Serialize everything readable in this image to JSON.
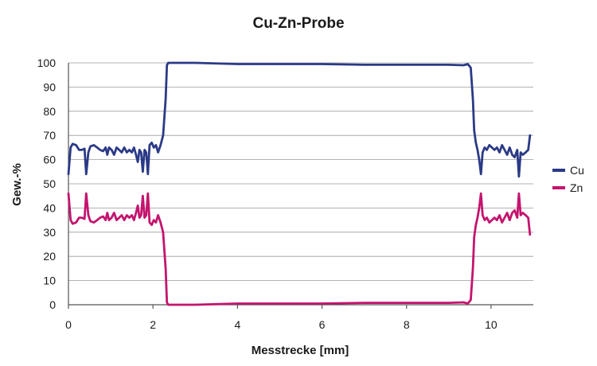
{
  "chart_data": {
    "type": "line",
    "title": "Cu-Zn-Probe",
    "xlabel": "Messtrecke [mm]",
    "ylabel": "Gew.-%",
    "xlim": [
      0,
      11
    ],
    "ylim": [
      0,
      100
    ],
    "xticks": [
      0,
      2,
      4,
      6,
      8,
      10
    ],
    "yticks": [
      0,
      10,
      20,
      30,
      40,
      50,
      60,
      70,
      80,
      90,
      100
    ],
    "grid": "horizontal",
    "legend": "right",
    "series": [
      {
        "name": "Cu",
        "color": "#2b3a86",
        "points": [
          [
            0.0,
            54
          ],
          [
            0.05,
            65
          ],
          [
            0.1,
            66.5
          ],
          [
            0.18,
            66
          ],
          [
            0.25,
            64
          ],
          [
            0.32,
            64
          ],
          [
            0.38,
            64.5
          ],
          [
            0.42,
            54
          ],
          [
            0.47,
            63
          ],
          [
            0.52,
            65.5
          ],
          [
            0.6,
            66
          ],
          [
            0.68,
            65
          ],
          [
            0.75,
            64
          ],
          [
            0.82,
            63.5
          ],
          [
            0.88,
            65
          ],
          [
            0.92,
            62
          ],
          [
            0.96,
            65
          ],
          [
            1.02,
            64
          ],
          [
            1.08,
            62
          ],
          [
            1.14,
            65
          ],
          [
            1.2,
            64
          ],
          [
            1.26,
            63
          ],
          [
            1.32,
            65
          ],
          [
            1.38,
            63
          ],
          [
            1.44,
            64
          ],
          [
            1.5,
            63
          ],
          [
            1.55,
            65
          ],
          [
            1.6,
            62
          ],
          [
            1.64,
            59
          ],
          [
            1.68,
            64
          ],
          [
            1.72,
            63
          ],
          [
            1.76,
            55
          ],
          [
            1.8,
            64
          ],
          [
            1.84,
            63
          ],
          [
            1.88,
            54
          ],
          [
            1.92,
            66
          ],
          [
            1.97,
            67
          ],
          [
            2.02,
            65
          ],
          [
            2.07,
            66
          ],
          [
            2.12,
            63
          ],
          [
            2.18,
            66
          ],
          [
            2.24,
            70
          ],
          [
            2.3,
            85
          ],
          [
            2.33,
            99
          ],
          [
            2.36,
            100
          ],
          [
            3.0,
            100
          ],
          [
            4.0,
            99.5
          ],
          [
            5.0,
            99.5
          ],
          [
            6.0,
            99.5
          ],
          [
            7.0,
            99.2
          ],
          [
            8.0,
            99.2
          ],
          [
            9.0,
            99.2
          ],
          [
            9.35,
            99
          ],
          [
            9.45,
            99.5
          ],
          [
            9.52,
            98
          ],
          [
            9.57,
            85
          ],
          [
            9.6,
            72
          ],
          [
            9.64,
            67
          ],
          [
            9.68,
            64
          ],
          [
            9.72,
            60
          ],
          [
            9.76,
            54
          ],
          [
            9.8,
            63
          ],
          [
            9.85,
            65
          ],
          [
            9.9,
            64
          ],
          [
            9.96,
            66
          ],
          [
            10.02,
            65
          ],
          [
            10.08,
            64
          ],
          [
            10.14,
            65
          ],
          [
            10.2,
            63
          ],
          [
            10.26,
            66
          ],
          [
            10.32,
            64
          ],
          [
            10.38,
            62
          ],
          [
            10.44,
            65
          ],
          [
            10.5,
            62
          ],
          [
            10.56,
            61
          ],
          [
            10.62,
            64
          ],
          [
            10.66,
            53
          ],
          [
            10.7,
            63
          ],
          [
            10.75,
            62
          ],
          [
            10.82,
            63
          ],
          [
            10.88,
            64
          ],
          [
            10.92,
            70
          ]
        ]
      },
      {
        "name": "Zn",
        "color": "#c4146e",
        "points": [
          [
            0.0,
            46
          ],
          [
            0.05,
            35
          ],
          [
            0.1,
            33.5
          ],
          [
            0.18,
            34
          ],
          [
            0.25,
            36
          ],
          [
            0.32,
            36
          ],
          [
            0.38,
            35.5
          ],
          [
            0.42,
            46
          ],
          [
            0.47,
            37
          ],
          [
            0.52,
            34.5
          ],
          [
            0.6,
            34
          ],
          [
            0.68,
            35
          ],
          [
            0.75,
            36
          ],
          [
            0.82,
            36.5
          ],
          [
            0.88,
            35
          ],
          [
            0.92,
            38
          ],
          [
            0.96,
            35
          ],
          [
            1.02,
            36
          ],
          [
            1.08,
            38
          ],
          [
            1.14,
            35
          ],
          [
            1.2,
            36
          ],
          [
            1.26,
            37
          ],
          [
            1.32,
            35
          ],
          [
            1.38,
            37
          ],
          [
            1.44,
            36
          ],
          [
            1.5,
            37
          ],
          [
            1.55,
            35
          ],
          [
            1.6,
            38
          ],
          [
            1.64,
            41
          ],
          [
            1.68,
            36
          ],
          [
            1.72,
            37
          ],
          [
            1.76,
            45
          ],
          [
            1.8,
            36
          ],
          [
            1.84,
            37
          ],
          [
            1.88,
            46
          ],
          [
            1.92,
            34
          ],
          [
            1.97,
            33
          ],
          [
            2.02,
            35
          ],
          [
            2.07,
            34
          ],
          [
            2.12,
            37
          ],
          [
            2.18,
            34
          ],
          [
            2.24,
            30
          ],
          [
            2.3,
            15
          ],
          [
            2.33,
            1
          ],
          [
            2.36,
            0
          ],
          [
            3.0,
            0
          ],
          [
            4.0,
            0.5
          ],
          [
            5.0,
            0.5
          ],
          [
            6.0,
            0.5
          ],
          [
            7.0,
            0.8
          ],
          [
            8.0,
            0.8
          ],
          [
            9.0,
            0.8
          ],
          [
            9.35,
            1
          ],
          [
            9.45,
            0.5
          ],
          [
            9.52,
            2
          ],
          [
            9.57,
            15
          ],
          [
            9.6,
            28
          ],
          [
            9.64,
            33
          ],
          [
            9.68,
            36
          ],
          [
            9.72,
            40
          ],
          [
            9.76,
            46
          ],
          [
            9.8,
            37
          ],
          [
            9.85,
            35
          ],
          [
            9.9,
            36
          ],
          [
            9.96,
            34
          ],
          [
            10.02,
            35
          ],
          [
            10.08,
            36
          ],
          [
            10.14,
            35
          ],
          [
            10.2,
            37
          ],
          [
            10.26,
            34
          ],
          [
            10.32,
            36
          ],
          [
            10.38,
            38
          ],
          [
            10.44,
            35
          ],
          [
            10.5,
            38
          ],
          [
            10.56,
            39
          ],
          [
            10.62,
            36
          ],
          [
            10.66,
            46
          ],
          [
            10.7,
            37
          ],
          [
            10.75,
            38
          ],
          [
            10.82,
            37
          ],
          [
            10.88,
            36
          ],
          [
            10.92,
            29
          ]
        ]
      }
    ]
  }
}
